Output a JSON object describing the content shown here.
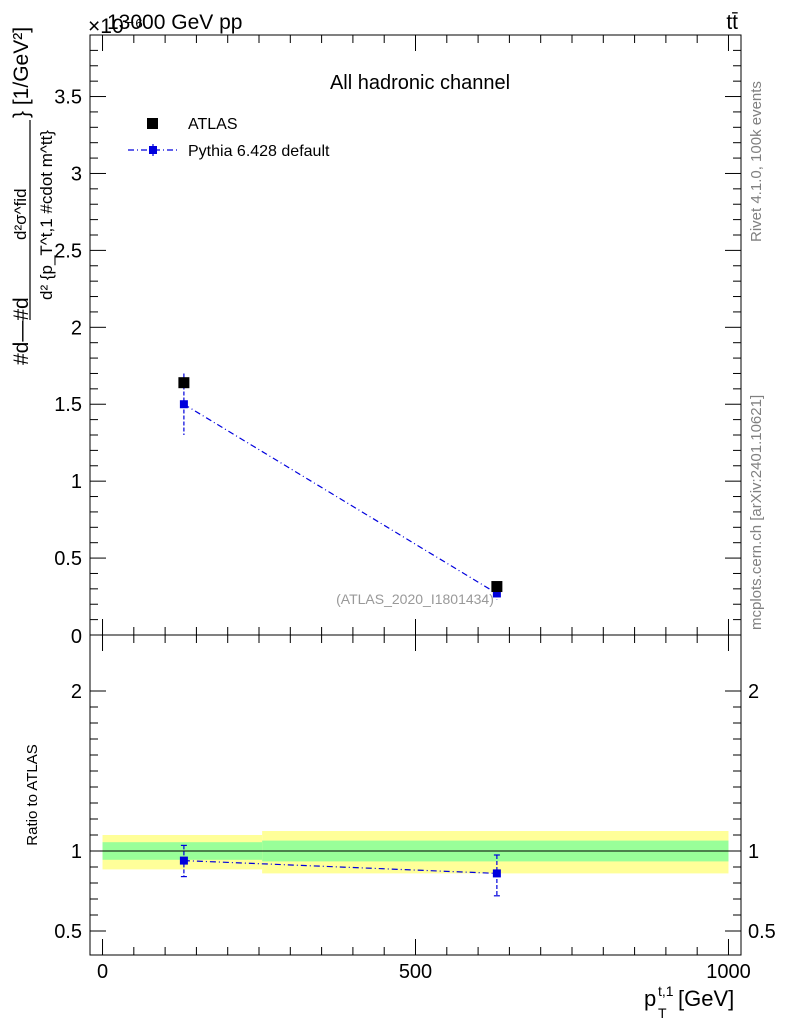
{
  "header": {
    "left_label": "13000 GeV pp",
    "right_label": "tt̄",
    "exponent_label": "×10⁻⁶"
  },
  "side_labels": {
    "rivet": "Rivet 4.1.0,  100k events",
    "mcplots": "mcplots.cern.ch [arXiv:2401.10621]"
  },
  "chart_data": [
    {
      "type": "scatter",
      "title": "All hadronic channel",
      "ylabel": "#d\\frac{1}{σ}#d\\frac{d^{2}σ^{fid}}{d^{2} {p_{T}^{t,1} #cdot m^{tt}}} [1/GeV²]",
      "ylabel_parts": {
        "frac_top": "#d—#d",
        "inner_num": "d²σ^fid",
        "inner_den": "d² {p_T^t,1 #cdot m^tt}",
        "suffix": "} [1/GeV²]"
      },
      "xlim": [
        -20,
        1020
      ],
      "ylim": [
        0,
        3.9
      ],
      "y_multiplier": "1e-6",
      "yticks": [
        0.5,
        1,
        1.5,
        2,
        2.5,
        3,
        3.5
      ],
      "ytick_labels": [
        "0.5",
        "1",
        "1.5",
        "2",
        "2.5",
        "3",
        "3.5"
      ],
      "y_zero_label": "0",
      "watermark": "(ATLAS_2020_I1801434)",
      "legend_position": "top-left",
      "series": [
        {
          "name": "ATLAS",
          "color": "#000000",
          "marker": "square",
          "points": [
            {
              "x": 130,
              "y": 1.64,
              "err_up": 0.03,
              "err_down": 0.03
            },
            {
              "x": 630,
              "y": 0.315,
              "err_up": 0.01,
              "err_down": 0.01
            }
          ]
        },
        {
          "name": "Pythia 6.428 default",
          "color": "#0000dd",
          "marker": "square",
          "line": "dash-dot",
          "points": [
            {
              "x": 130,
              "y": 1.5,
              "err_up": 0.2,
              "err_down": 0.2
            },
            {
              "x": 630,
              "y": 0.27,
              "err_up": 0.04,
              "err_down": 0.04
            }
          ]
        }
      ]
    },
    {
      "type": "scatter",
      "title": "",
      "ylabel": "Ratio to ATLAS",
      "xlabel": "p_T^{t,1} [GeV]",
      "xlabel_main": "p",
      "xlabel_sub": "T",
      "xlabel_sup": "t,1",
      "xlabel_unit": " [GeV]",
      "xlim": [
        -20,
        1020
      ],
      "ylim": [
        0.35,
        2.35
      ],
      "xticks": [
        0,
        500,
        1000
      ],
      "xtick_labels": [
        "0",
        "500",
        "1000"
      ],
      "yticks": [
        0.5,
        1,
        2
      ],
      "ytick_labels": [
        "0.5",
        "1",
        "2"
      ],
      "bands": [
        {
          "x0": 0,
          "x1": 255,
          "inner": [
            0.945,
            1.055
          ],
          "outer": [
            0.885,
            1.1
          ]
        },
        {
          "x0": 255,
          "x1": 1000,
          "inner": [
            0.935,
            1.065
          ],
          "outer": [
            0.86,
            1.125
          ]
        }
      ],
      "series": [
        {
          "name": "Pythia 6.428 default",
          "color": "#0000dd",
          "points": [
            {
              "x": 130,
              "y": 0.94,
              "err_up": 0.095,
              "err_down": 0.1
            },
            {
              "x": 630,
              "y": 0.86,
              "err_up": 0.115,
              "err_down": 0.14
            }
          ]
        }
      ]
    }
  ],
  "colors": {
    "band_inner": "#99ff99",
    "band_outer": "#ffff99",
    "axis": "#000000",
    "pythia": "#0000dd",
    "atlas": "#000000",
    "side_text": "#808080",
    "watermark": "#999999"
  }
}
